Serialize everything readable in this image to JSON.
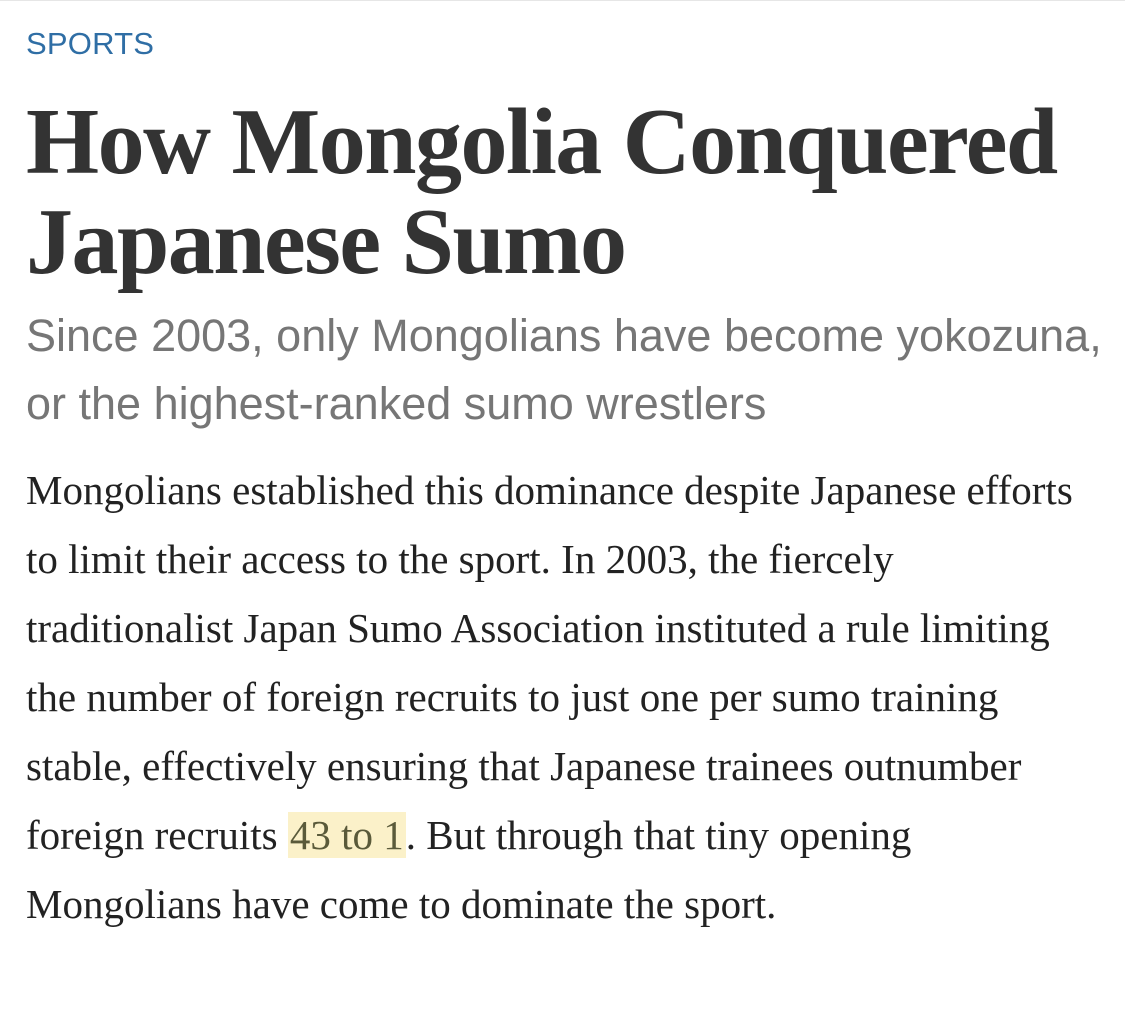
{
  "article": {
    "section": "SPORTS",
    "headline": "How Mongolia Conquered Japanese Sumo",
    "dek": "Since 2003, only Mongolians have become yokozuna, or the highest-ranked sumo wrestlers",
    "body": {
      "before_highlight": "Mongolians established this dominance despite Japanese efforts to limit their access to the sport. In 2003, the fiercely traditionalist Japan Sumo Association instituted a rule limiting the number of foreign recruits to just one per sumo training stable, effectively ensuring that Japanese trainees outnumber foreign recruits ",
      "highlight": "43 to 1",
      "after_highlight": ". But through that tiny opening Mongolians have come to dominate the sport."
    }
  },
  "colors": {
    "section": "#2f6ea5",
    "headline": "#333333",
    "dek": "#767676",
    "body": "#222222",
    "highlight_bg": "#fbf1c9"
  }
}
